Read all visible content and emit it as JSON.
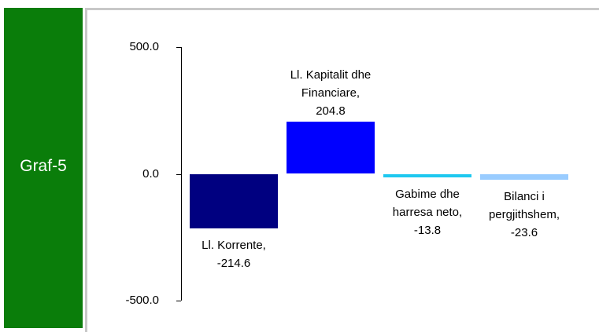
{
  "title": "Graf-5",
  "chart_data": {
    "type": "bar",
    "values": [
      -214.6,
      204.8,
      -13.8,
      -23.6
    ],
    "value_labels": [
      "Ll. Korrente, -214.6",
      "Ll. Kapitalit dhe Financiare, 204.8",
      "Gabime dhe harresa neto, -13.8",
      "Bilanci i pergjithshem, -23.6"
    ],
    "colors": [
      "#000080",
      "#0000ff",
      "#1ec8f0",
      "#99ccff"
    ],
    "ylim": [
      -500,
      500
    ],
    "yticks": [
      {
        "value": -500,
        "label": "-500.0"
      },
      {
        "value": 0,
        "label": "0.0"
      },
      {
        "value": 500,
        "label": "500.0"
      }
    ]
  }
}
